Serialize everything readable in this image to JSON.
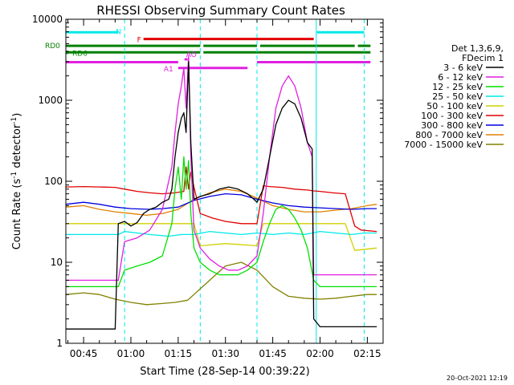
{
  "chart_data": {
    "type": "line",
    "title": "RHESSI Observing Summary Count Rates",
    "xlabel": "Start Time (28-Sep-14 00:39:22)",
    "ylabel_main": "Count Rate (s",
    "ylabel_sup1": "-1",
    "ylabel_mid": " detector",
    "ylabel_sup2": "-1",
    "ylabel_end": ")",
    "y_scale": "log",
    "ylim": [
      1,
      10000
    ],
    "xlim_minutes": [
      39.37,
      140
    ],
    "x_ticks": [
      {
        "label": "00:45",
        "m": 45
      },
      {
        "label": "01:00",
        "m": 60
      },
      {
        "label": "01:15",
        "m": 75
      },
      {
        "label": "01:30",
        "m": 90
      },
      {
        "label": "01:45",
        "m": 105
      },
      {
        "label": "02:00",
        "m": 120
      },
      {
        "label": "02:15",
        "m": 135
      }
    ],
    "y_ticks": [
      {
        "label": "1",
        "v": 1
      },
      {
        "label": "10",
        "v": 10
      },
      {
        "label": "100",
        "v": 100
      },
      {
        "label": "1000",
        "v": 1000
      },
      {
        "label": "10000",
        "v": 10000
      }
    ],
    "legend_header": [
      "Det 1,3,6,9,",
      "FDecim 1"
    ],
    "series": [
      {
        "name": "3 - 6 keV",
        "color": "#000000",
        "x": [
          39.4,
          55,
          56,
          58,
          60,
          62,
          64,
          66,
          68,
          70,
          72,
          73,
          74,
          75,
          76,
          76.8,
          77.5,
          78.3,
          79,
          80,
          82,
          85,
          88,
          91,
          94,
          97,
          99,
          100,
          102,
          104,
          106,
          108,
          110,
          112,
          114,
          116,
          117.5,
          118,
          120,
          125,
          130,
          135,
          138
        ],
        "y": [
          1.5,
          1.5,
          30,
          32,
          28,
          31,
          40,
          45,
          48,
          55,
          60,
          80,
          200,
          400,
          600,
          700,
          400,
          3000,
          300,
          60,
          65,
          70,
          80,
          85,
          80,
          70,
          60,
          55,
          80,
          200,
          500,
          800,
          1000,
          900,
          600,
          300,
          250,
          2,
          1.6,
          1.6,
          1.6,
          1.6,
          1.6
        ]
      },
      {
        "name": "6 - 12 keV",
        "color": "#e020e0",
        "x": [
          39.4,
          56,
          58,
          62,
          66,
          70,
          73,
          74,
          75,
          76,
          76.8,
          77.5,
          78.3,
          79,
          80,
          82,
          85,
          88,
          91,
          94,
          97,
          100,
          102,
          104,
          106,
          108,
          110,
          112,
          114,
          116,
          117.5,
          118,
          120,
          125,
          130,
          135,
          138
        ],
        "y": [
          6,
          6,
          18,
          20,
          25,
          45,
          150,
          400,
          900,
          1500,
          2500,
          800,
          3500,
          200,
          25,
          15,
          11,
          9,
          8,
          8,
          9,
          12,
          40,
          200,
          800,
          1500,
          2000,
          1500,
          800,
          300,
          200,
          7,
          7,
          7,
          7,
          7,
          7
        ]
      },
      {
        "name": "12 - 25 keV",
        "color": "#00e000",
        "x": [
          39.4,
          56,
          58,
          62,
          66,
          70,
          73,
          74,
          75,
          76,
          76.8,
          77.5,
          78.3,
          79,
          80,
          82,
          85,
          88,
          91,
          94,
          97,
          100,
          102,
          104,
          106,
          108,
          110,
          112,
          114,
          116,
          118,
          120,
          125,
          130,
          135,
          138
        ],
        "y": [
          5,
          5,
          8,
          9,
          10,
          12,
          30,
          80,
          150,
          60,
          200,
          80,
          180,
          40,
          15,
          10,
          8,
          7,
          7,
          7,
          8,
          10,
          18,
          30,
          45,
          50,
          45,
          35,
          25,
          15,
          6,
          5,
          5,
          5,
          5,
          5
        ]
      },
      {
        "name": "25 - 50 keV",
        "color": "#00e8e8",
        "x": [
          39.4,
          56,
          58,
          66,
          72,
          76,
          80,
          85,
          90,
          95,
          100,
          105,
          110,
          115,
          120,
          125,
          130,
          134,
          138
        ],
        "y": [
          22,
          22,
          24,
          22,
          21,
          22,
          22,
          24,
          23,
          22,
          23,
          22,
          23,
          22,
          24,
          23,
          22,
          23,
          23
        ]
      },
      {
        "name": "50 - 100 keV",
        "color": "#d0d000",
        "x": [
          39.4,
          58,
          80,
          82,
          90,
          100,
          102,
          110,
          118,
          120,
          128,
          131,
          138
        ],
        "y": [
          30,
          30,
          30,
          16,
          17,
          16,
          30,
          30,
          30,
          30,
          30,
          14,
          15
        ]
      },
      {
        "name": "100 - 300 keV",
        "color": "#e00000",
        "x": [
          39.4,
          45,
          50,
          55,
          58,
          62,
          66,
          70,
          74,
          76.8,
          77.5,
          78.3,
          79,
          80,
          82,
          86,
          90,
          95,
          100,
          102,
          104,
          108,
          112,
          116,
          118,
          120,
          124,
          128,
          131,
          133,
          138
        ],
        "y": [
          85,
          86,
          85,
          84,
          80,
          75,
          72,
          70,
          72,
          75,
          150,
          80,
          130,
          85,
          40,
          35,
          32,
          30,
          30,
          88,
          86,
          84,
          80,
          78,
          76,
          75,
          72,
          70,
          28,
          25,
          24
        ]
      },
      {
        "name": "300 - 800 keV",
        "color": "#0000e0",
        "x": [
          39.4,
          45,
          50,
          55,
          60,
          66,
          70,
          75,
          80,
          85,
          90,
          95,
          100,
          105,
          110,
          115,
          120,
          125,
          130,
          135,
          138
        ],
        "y": [
          52,
          55,
          52,
          48,
          46,
          45,
          46,
          48,
          58,
          65,
          70,
          68,
          60,
          54,
          50,
          48,
          47,
          46,
          45,
          46,
          46
        ]
      },
      {
        "name": "800 - 7000 keV",
        "color": "#e08000",
        "x": [
          39.4,
          45,
          50,
          55,
          60,
          65,
          70,
          75,
          80,
          85,
          90,
          95,
          100,
          105,
          110,
          115,
          120,
          125,
          130,
          135,
          138
        ],
        "y": [
          48,
          50,
          45,
          42,
          40,
          38,
          40,
          45,
          60,
          72,
          80,
          75,
          62,
          50,
          45,
          42,
          42,
          44,
          46,
          50,
          52
        ]
      },
      {
        "name": "7000 - 15000 keV",
        "color": "#808000",
        "x": [
          39.4,
          45,
          50,
          55,
          60,
          65,
          70,
          74,
          78,
          80,
          85,
          90,
          95,
          100,
          105,
          110,
          115,
          120,
          125,
          130,
          135,
          138
        ],
        "y": [
          4,
          4.2,
          4,
          3.5,
          3.2,
          3.0,
          3.1,
          3.2,
          3.4,
          4,
          6,
          9,
          10,
          8,
          5,
          3.8,
          3.6,
          3.5,
          3.6,
          3.8,
          4,
          4
        ]
      }
    ],
    "dashed_verticals": [
      {
        "m": 58,
        "color": "#00e8e8"
      },
      {
        "m": 82,
        "color": "#00e8e8"
      },
      {
        "m": 100,
        "color": "#00e8e8"
      },
      {
        "m": 134,
        "color": "#00e8e8"
      }
    ],
    "solid_verticals": [
      {
        "m": 118.8,
        "color": "#00e8e8"
      }
    ],
    "flag_bars": [
      {
        "label": "N",
        "color": "#00e8e8",
        "level": 6900,
        "segments": [
          [
            39.4,
            56
          ],
          [
            119,
            134
          ]
        ]
      },
      {
        "label": "F",
        "color": "#e00000",
        "level": 5700,
        "segments": [
          [
            64,
            118
          ]
        ]
      },
      {
        "label": "RD0",
        "color": "#008000",
        "level": 4700,
        "segments": [
          [
            39.4,
            82
          ],
          [
            83,
            100
          ],
          [
            101,
            131
          ],
          [
            132,
            136
          ]
        ]
      },
      {
        "label": "RD6",
        "color": "#008000",
        "level": 3900,
        "segments": [
          [
            39.4,
            82
          ],
          [
            83,
            136
          ]
        ]
      },
      {
        "label": "",
        "color": "#e020e0",
        "level": 2950,
        "segments": [
          [
            39.4,
            75
          ],
          [
            100,
            136
          ]
        ]
      },
      {
        "label": "A1",
        "color": "#e020e0",
        "level": 2500,
        "segments": [
          [
            75,
            97
          ]
        ]
      },
      {
        "label": "AO",
        "color": "#e020e0",
        "level": 3200,
        "segments": [
          [
            77,
            78
          ]
        ]
      }
    ],
    "footer_timestamp": "20-Oct-2021 12:19"
  }
}
